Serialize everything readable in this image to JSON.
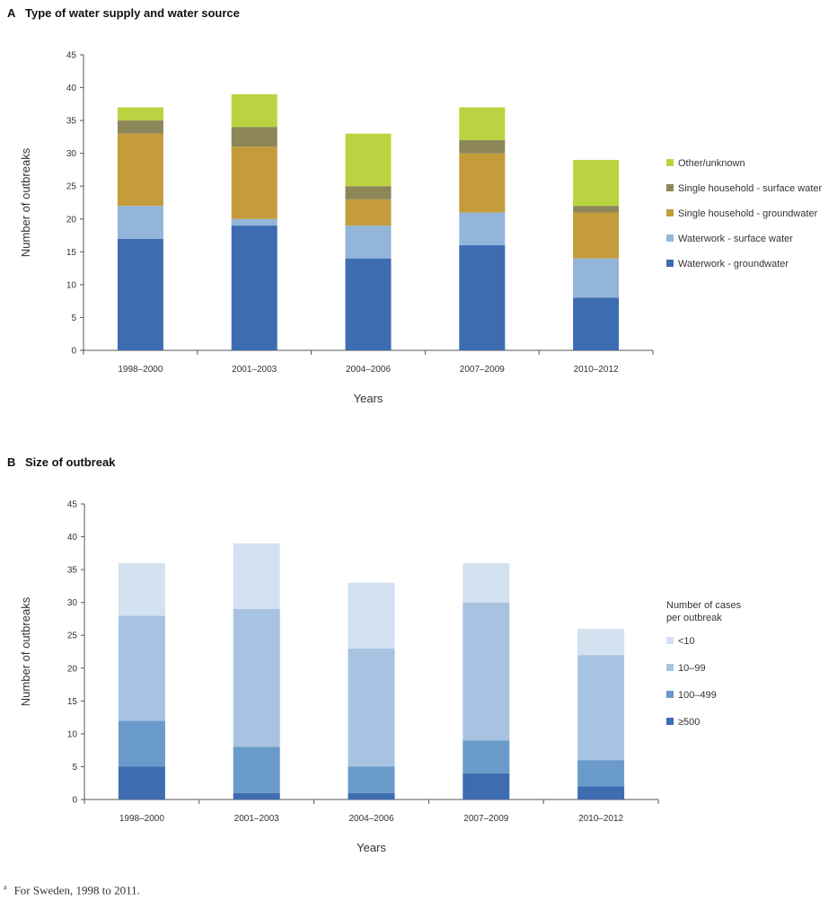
{
  "chart_data": [
    {
      "type": "bar",
      "stacked": true,
      "panel_letter": "A",
      "title": "Type of water supply and water source",
      "xlabel": "Years",
      "ylabel": "Number of outbreaks",
      "ylim": [
        0,
        45
      ],
      "yticks": [
        0,
        5,
        10,
        15,
        20,
        25,
        30,
        35,
        40,
        45
      ],
      "categories": [
        "1998–2000",
        "2001–2003",
        "2004–2006",
        "2007–2009",
        "2010–2012"
      ],
      "series": [
        {
          "name": "Waterwork - groundwater",
          "color": "#3d6cb1",
          "values": [
            17,
            19,
            14,
            16,
            8
          ]
        },
        {
          "name": "Waterwork - surface water",
          "color": "#94b5da",
          "values": [
            5,
            1,
            5,
            5,
            6
          ]
        },
        {
          "name": "Single household - groundwater",
          "color": "#c49c3b",
          "values": [
            11,
            11,
            4,
            9,
            7
          ]
        },
        {
          "name": "Single household -  surface water",
          "color": "#8c8659",
          "values": [
            2,
            3,
            2,
            2,
            1
          ]
        },
        {
          "name": "Other/unknown",
          "color": "#b9d440",
          "values": [
            2,
            5,
            8,
            5,
            7
          ]
        }
      ],
      "legend_title": "",
      "legend": "right"
    },
    {
      "type": "bar",
      "stacked": true,
      "panel_letter": "B",
      "title": "Size of outbreak",
      "xlabel": "Years",
      "ylabel": "Number of outbreaks",
      "ylim": [
        0,
        45
      ],
      "yticks": [
        0,
        5,
        10,
        15,
        20,
        25,
        30,
        35,
        40,
        45
      ],
      "categories": [
        "1998–2000",
        "2001–2003",
        "2004–2006",
        "2007–2009",
        "2010–2012"
      ],
      "series": [
        {
          "name": "≥500",
          "color": "#3d6cb1",
          "values": [
            5,
            1,
            1,
            4,
            2
          ]
        },
        {
          "name": "100–499",
          "color": "#6a9ac9",
          "values": [
            7,
            7,
            4,
            5,
            4
          ]
        },
        {
          "name": "10–99",
          "color": "#a8c3e1",
          "values": [
            16,
            21,
            18,
            21,
            16
          ]
        },
        {
          "name": "<10",
          "color": "#d3e2f1",
          "values": [
            8,
            10,
            10,
            6,
            4
          ]
        }
      ],
      "legend_title": [
        "Number of cases",
        "per outbreak"
      ],
      "legend": "right"
    }
  ],
  "footnote": {
    "marker": "a",
    "text": "For Sweden, 1998 to 2011."
  }
}
